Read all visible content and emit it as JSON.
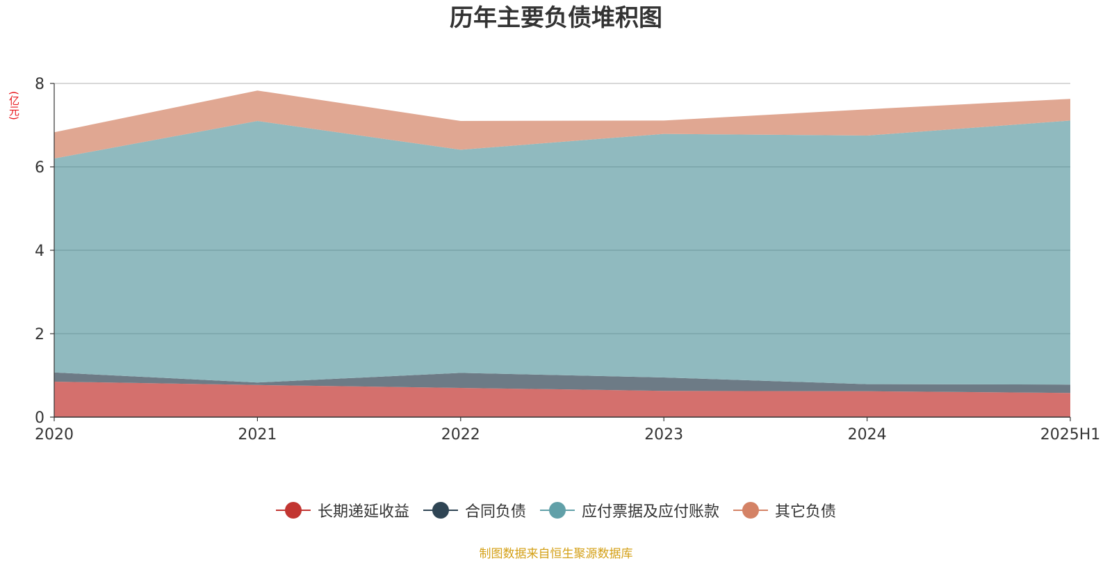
{
  "chart_data": {
    "type": "area",
    "stacked": true,
    "title": "历年主要负债堆积图",
    "unit_label": "(亿元)",
    "categories": [
      "2020",
      "2021",
      "2022",
      "2023",
      "2024",
      "2025H1"
    ],
    "ylim": [
      0,
      8
    ],
    "yticks": [
      "0",
      "2",
      "4",
      "6",
      "8"
    ],
    "grid": true,
    "legend_position": "bottom",
    "series": [
      {
        "name": "长期递延收益",
        "color": "#c23531",
        "fill": "#d4706d",
        "values": [
          0.85,
          0.77,
          0.7,
          0.63,
          0.62,
          0.58
        ]
      },
      {
        "name": "合同负债",
        "color": "#2f4554",
        "fill": "#6d7b86",
        "values": [
          0.22,
          0.06,
          0.36,
          0.32,
          0.17,
          0.2
        ]
      },
      {
        "name": "应付票据及应付账款",
        "color": "#61a0a8",
        "fill": "#90babf",
        "values": [
          5.13,
          6.27,
          5.35,
          5.84,
          5.96,
          6.33
        ]
      },
      {
        "name": "其它负债",
        "color": "#d48265",
        "fill": "#e0a792",
        "values": [
          0.63,
          0.73,
          0.69,
          0.32,
          0.63,
          0.52
        ]
      }
    ]
  },
  "footer": {
    "source": "制图数据来自恒生聚源数据库"
  }
}
